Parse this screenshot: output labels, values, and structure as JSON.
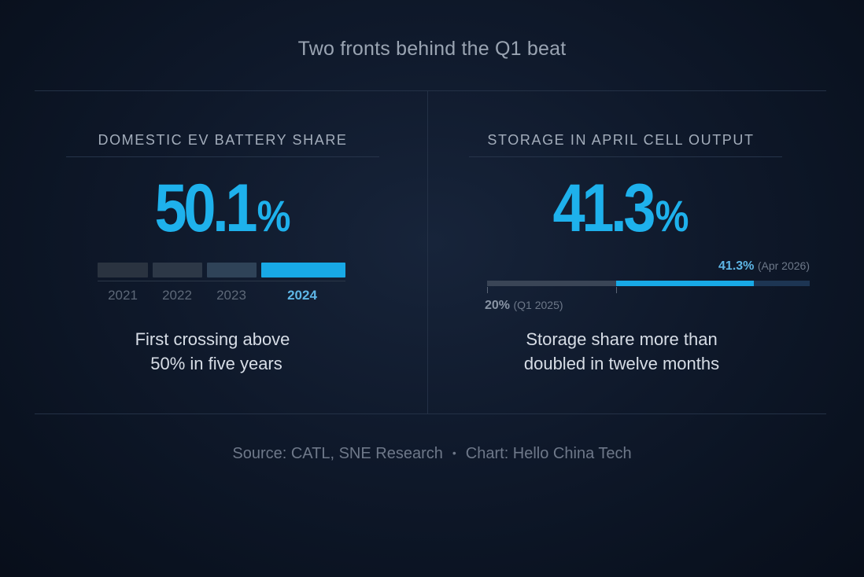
{
  "title": "Two fronts behind the Q1 beat",
  "colors": {
    "accent": "#1eb1ec",
    "past_segment": "#2a3442",
    "current_segment": "#18a9e6",
    "track": "#3a4556"
  },
  "left_panel": {
    "heading": "DOMESTIC EV BATTERY SHARE",
    "value": "50.1",
    "unit": "%",
    "caption_line1": "First crossing above",
    "caption_line2": "50% in five years"
  },
  "right_panel": {
    "heading": "STORAGE IN APRIL CELL OUTPUT",
    "value": "41.3",
    "unit": "%",
    "caption_line1": "Storage share more than",
    "caption_line2": "doubled in twelve months",
    "start_value_label": "20%",
    "start_period_label": "(Q1 2025)",
    "end_value_label": "41.3%",
    "end_period_label": "(Apr 2026)"
  },
  "source": {
    "source_text": "Source: CATL, SNE Research",
    "separator": "•",
    "chart_text": "Chart: Hello China Tech"
  },
  "chart_data": [
    {
      "type": "bar",
      "title": "DOMESTIC EV BATTERY SHARE",
      "categories": [
        "2021",
        "2022",
        "2023",
        "2024"
      ],
      "highlight": "2024",
      "headline_value": 50.1,
      "unit": "%"
    },
    {
      "type": "bar",
      "title": "STORAGE IN APRIL CELL OUTPUT",
      "points": [
        {
          "label": "Q1 2025",
          "value": 20
        },
        {
          "label": "Apr 2026",
          "value": 41.3
        }
      ],
      "headline_value": 41.3,
      "unit": "%",
      "xlim": [
        0,
        50
      ]
    }
  ]
}
